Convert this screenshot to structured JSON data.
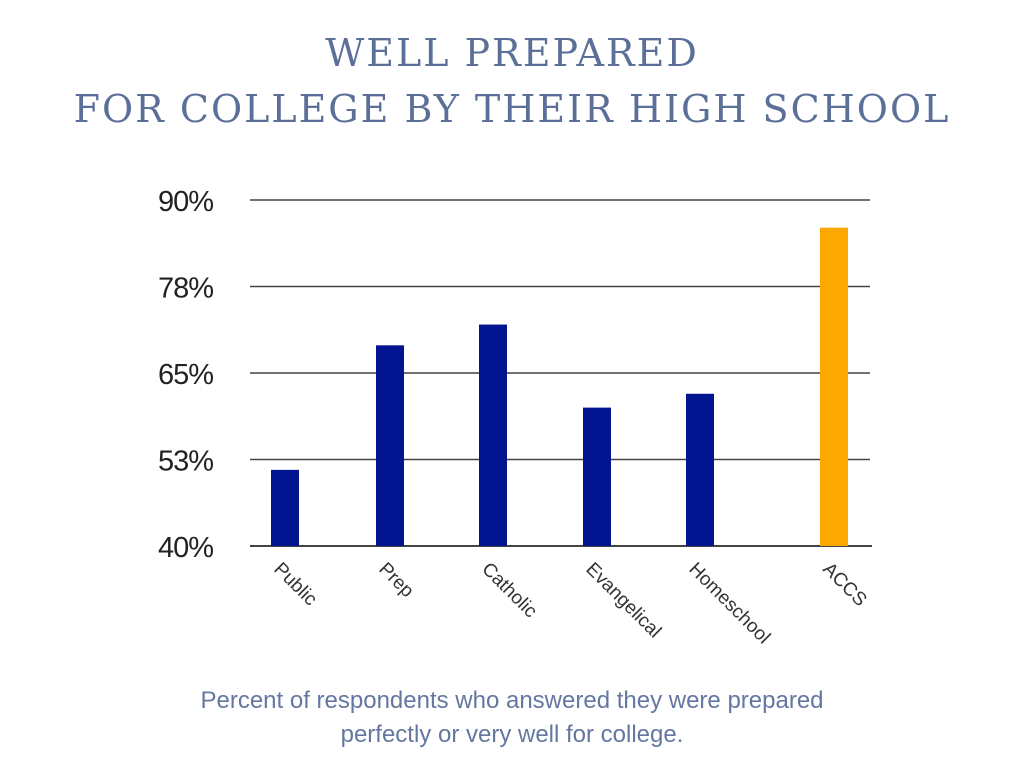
{
  "chart_data": {
    "type": "bar",
    "title": [
      "WELL PREPARED",
      "FOR COLLEGE BY THEIR HIGH SCHOOL"
    ],
    "categories": [
      "Public",
      "Prep",
      "Catholic",
      "Evangelical",
      "Homeschool",
      "ACCS"
    ],
    "values": [
      51,
      69,
      72,
      60,
      62,
      86
    ],
    "unit": "%",
    "ylim": [
      40,
      90
    ],
    "yticks": [
      40,
      52.5,
      65,
      77.5,
      90
    ],
    "ytick_labels": [
      "40%",
      "53%",
      "65%",
      "78%",
      "90%"
    ],
    "grid": true,
    "legend": "none",
    "colors": {
      "default": "#021490",
      "highlight": "#fca800",
      "title": "#5b6f98",
      "caption": "#6477a0",
      "grid": "#444444"
    },
    "highlight_category": "ACCS",
    "caption": [
      "Percent of respondents who answered they were prepared",
      "perfectly or very well for college."
    ]
  }
}
